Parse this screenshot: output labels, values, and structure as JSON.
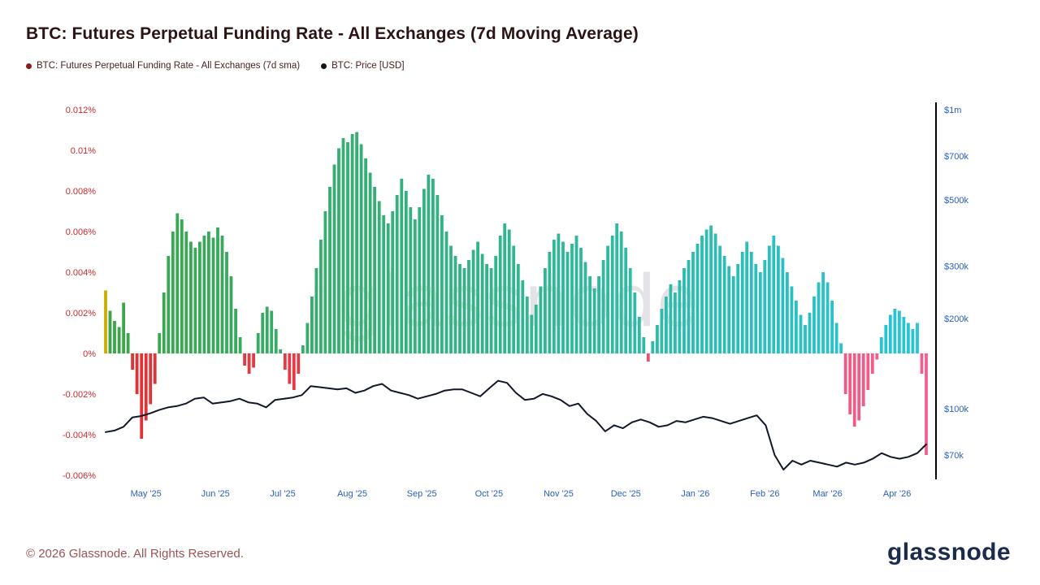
{
  "page": {
    "title": "BTC: Futures Perpetual Funding Rate - All Exchanges (7d Moving Average)",
    "watermark": "glassnode",
    "footer_copyright": "© 2026 Glassnode. All Rights Reserved.",
    "logo_text": "glassnode"
  },
  "legend": {
    "items": [
      {
        "label": "BTC: Futures Perpetual Funding Rate - All Exchanges (7d sma)",
        "dot_color": "#8b1a1a"
      },
      {
        "label": "BTC: Price [USD]",
        "dot_color": "#141414"
      }
    ]
  },
  "colors": {
    "title_text": "#2b1414",
    "left_axis_labels": "#c92a2a",
    "right_axis_labels": "#2a5ec7",
    "x_axis_labels": "#2a5ec7",
    "footer_text": "#9c5353",
    "logo_text": "#1a2b4c",
    "right_axis_line": "#000000"
  },
  "chart_data": {
    "type": "bar+line",
    "title": "BTC: Futures Perpetual Funding Rate - All Exchanges (7d Moving Average)",
    "grid": false,
    "legend_position": "top-left",
    "x_axis": {
      "total_days": 366,
      "label_color": "#2a5ec7",
      "ticks": [
        {
          "label": "May '25",
          "day": 18
        },
        {
          "label": "Jun '25",
          "day": 49
        },
        {
          "label": "Jul '25",
          "day": 79
        },
        {
          "label": "Aug '25",
          "day": 110
        },
        {
          "label": "Sep '25",
          "day": 141
        },
        {
          "label": "Oct '25",
          "day": 171
        },
        {
          "label": "Nov '25",
          "day": 202
        },
        {
          "label": "Dec '25",
          "day": 232
        },
        {
          "label": "Jan '26",
          "day": 263
        },
        {
          "label": "Feb '26",
          "day": 294
        },
        {
          "label": "Mar '26",
          "day": 322
        },
        {
          "label": "Apr '26",
          "day": 353
        }
      ]
    },
    "left_axis": {
      "unit": "%",
      "range": [
        -0.006,
        0.012
      ],
      "label_color": "#c92a2a",
      "ticks": [
        {
          "label": "0.012%",
          "value": 0.012
        },
        {
          "label": "0.01%",
          "value": 0.01
        },
        {
          "label": "0.008%",
          "value": 0.008
        },
        {
          "label": "0.006%",
          "value": 0.006
        },
        {
          "label": "0.004%",
          "value": 0.004
        },
        {
          "label": "0.002%",
          "value": 0.002
        },
        {
          "label": "0%",
          "value": 0
        },
        {
          "label": "-0.002%",
          "value": -0.002
        },
        {
          "label": "-0.004%",
          "value": -0.004
        },
        {
          "label": "-0.006%",
          "value": -0.006
        }
      ]
    },
    "right_axis": {
      "unit": "USD",
      "scale": "log",
      "label_color": "#2a5ec7",
      "ticks": [
        {
          "label": "$1m",
          "value": 1000000
        },
        {
          "label": "$700k",
          "value": 700000
        },
        {
          "label": "$500k",
          "value": 500000
        },
        {
          "label": "$300k",
          "value": 300000
        },
        {
          "label": "$200k",
          "value": 200000
        },
        {
          "label": "$100k",
          "value": 100000
        },
        {
          "label": "$70k",
          "value": 70000
        }
      ]
    },
    "series": [
      {
        "name": "BTC: Futures Perpetual Funding Rate - All Exchanges (7d sma)",
        "type": "bar",
        "unit": "%",
        "step_days": 2,
        "first_bar_color": "#ccac00",
        "color_positive_start": "#3ba547",
        "color_positive_end": "#26c6da",
        "color_negative_start": "#e03131",
        "color_negative_end": "#f0608f",
        "values": [
          0.0031,
          0.0021,
          0.0016,
          0.0013,
          0.0025,
          0.001,
          -0.0008,
          -0.002,
          -0.0042,
          -0.0033,
          -0.0025,
          -0.0015,
          0.001,
          0.003,
          0.0048,
          0.006,
          0.0069,
          0.0066,
          0.006,
          0.0055,
          0.0052,
          0.0055,
          0.0058,
          0.006,
          0.0057,
          0.0062,
          0.0058,
          0.005,
          0.0038,
          0.0022,
          0.0008,
          -0.0006,
          -0.001,
          -0.0007,
          0.001,
          0.002,
          0.0023,
          0.0021,
          0.0012,
          0.0002,
          -0.0008,
          -0.0015,
          -0.0018,
          -0.001,
          0.0004,
          0.0015,
          0.0028,
          0.0042,
          0.0056,
          0.007,
          0.0082,
          0.0093,
          0.0101,
          0.0106,
          0.0104,
          0.0108,
          0.0109,
          0.0103,
          0.0096,
          0.0089,
          0.0082,
          0.0075,
          0.0068,
          0.0064,
          0.007,
          0.0078,
          0.0086,
          0.008,
          0.0072,
          0.0066,
          0.0072,
          0.0081,
          0.0088,
          0.0086,
          0.0078,
          0.0068,
          0.006,
          0.0053,
          0.0048,
          0.0044,
          0.0042,
          0.0046,
          0.0051,
          0.0055,
          0.0049,
          0.0044,
          0.0042,
          0.0048,
          0.0058,
          0.0064,
          0.0061,
          0.0053,
          0.0044,
          0.0036,
          0.0028,
          0.0019,
          0.0024,
          0.0033,
          0.0042,
          0.005,
          0.0056,
          0.0059,
          0.0055,
          0.005,
          0.0054,
          0.0058,
          0.0052,
          0.0045,
          0.0038,
          0.0032,
          0.0038,
          0.0046,
          0.0053,
          0.0058,
          0.0064,
          0.006,
          0.0052,
          0.0042,
          0.003,
          0.0018,
          0.0008,
          -0.0004,
          0.0006,
          0.0014,
          0.0022,
          0.0028,
          0.0034,
          0.003,
          0.0036,
          0.0042,
          0.0046,
          0.005,
          0.0054,
          0.0058,
          0.0061,
          0.0063,
          0.0059,
          0.0053,
          0.0048,
          0.0043,
          0.0038,
          0.0044,
          0.005,
          0.0055,
          0.005,
          0.0044,
          0.004,
          0.0046,
          0.0053,
          0.0058,
          0.0053,
          0.0047,
          0.004,
          0.0033,
          0.0026,
          0.0019,
          0.0014,
          0.002,
          0.0028,
          0.0035,
          0.004,
          0.0035,
          0.0026,
          0.0015,
          0.0005,
          -0.002,
          -0.003,
          -0.0036,
          -0.0033,
          -0.0026,
          -0.0018,
          -0.001,
          -0.0003,
          0.0008,
          0.0014,
          0.0019,
          0.0022,
          0.0021,
          0.0018,
          0.0015,
          0.0012,
          0.0015,
          -0.001,
          -0.005
        ]
      },
      {
        "name": "BTC: Price [USD]",
        "type": "line",
        "unit": "USD",
        "color": "#11182b",
        "values": [
          83500,
          84500,
          87000,
          93500,
          94500,
          96500,
          99000,
          101000,
          102000,
          104000,
          108000,
          109000,
          104000,
          105000,
          106000,
          108000,
          105000,
          104000,
          101000,
          107000,
          108000,
          109000,
          111000,
          119000,
          118000,
          117000,
          116000,
          117000,
          113000,
          115000,
          119000,
          121000,
          115000,
          113000,
          111000,
          108000,
          110000,
          112000,
          115000,
          116000,
          116000,
          113000,
          110000,
          117000,
          124000,
          122000,
          113000,
          107000,
          108000,
          112000,
          110000,
          107000,
          102000,
          104000,
          96000,
          91000,
          84000,
          88000,
          86000,
          90000,
          92000,
          90000,
          87000,
          88000,
          91000,
          90000,
          92000,
          94000,
          93000,
          91000,
          89000,
          91000,
          93000,
          95000,
          88000,
          70000,
          62500,
          67000,
          65000,
          67000,
          66000,
          65000,
          64000,
          66000,
          65000,
          66000,
          68000,
          71000,
          69000,
          68000,
          69000,
          71000,
          76000
        ]
      }
    ]
  }
}
